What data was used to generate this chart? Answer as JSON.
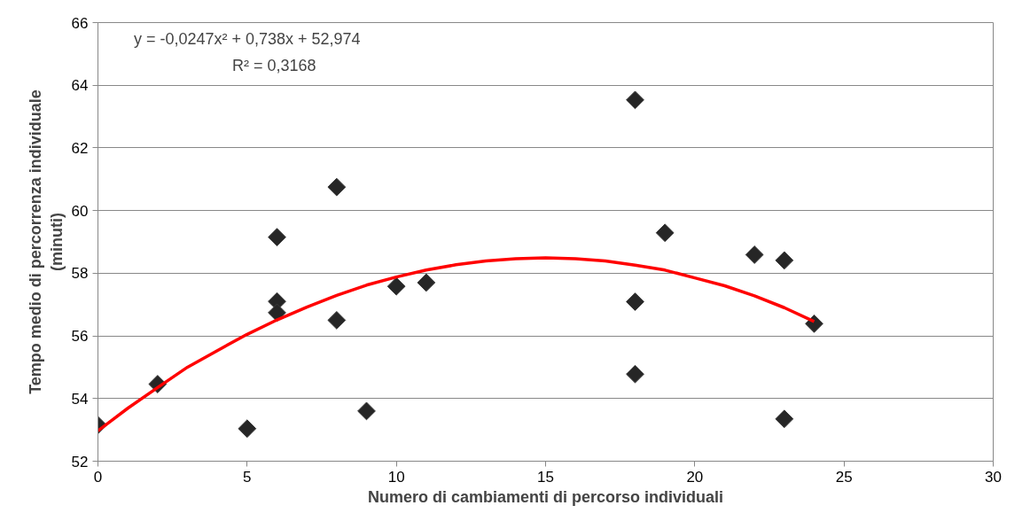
{
  "chart_data": {
    "type": "scatter",
    "xlabel": "Numero di cambiamenti di percorso individuali",
    "ylabel": "Tempo medio di percorrenza individuale\n(minuti)",
    "annotations": [
      "y = -0,0247x² + 0,738x + 52,974",
      "R² = 0,3168"
    ],
    "xlim": [
      0,
      30
    ],
    "xticks": [
      0,
      5,
      10,
      15,
      20,
      25,
      30
    ],
    "ylim": [
      52,
      66
    ],
    "yticks": [
      52,
      54,
      56,
      58,
      60,
      62,
      64,
      66
    ],
    "grid": "y",
    "series": [
      {
        "color": "#262626",
        "marker": "diamond",
        "x": [
          0,
          2,
          5,
          6,
          6,
          6,
          8,
          8,
          9,
          10,
          11,
          18,
          18,
          18,
          19,
          22,
          23,
          23,
          24
        ],
        "values": [
          53.15,
          54.46,
          53.04,
          57.1,
          56.74,
          59.15,
          60.75,
          56.5,
          53.6,
          57.58,
          57.7,
          63.53,
          57.09,
          54.78,
          59.29,
          58.59,
          58.41,
          53.35,
          56.39
        ]
      },
      {
        "type": "line",
        "color": "#ff0000",
        "line_style": "solid",
        "x": [
          0,
          1,
          2,
          3,
          4,
          5,
          6,
          7,
          8,
          9,
          10,
          11,
          12,
          13,
          14,
          15,
          16,
          17,
          18,
          19,
          20,
          21,
          22,
          23,
          24
        ],
        "values": [
          52.97,
          53.69,
          54.35,
          55.0,
          55.53,
          56.05,
          56.51,
          56.92,
          57.29,
          57.62,
          57.88,
          58.1,
          58.27,
          58.39,
          58.46,
          58.49,
          58.46,
          58.39,
          58.26,
          58.1,
          57.85,
          57.6,
          57.28,
          56.9,
          56.46
        ]
      }
    ]
  }
}
